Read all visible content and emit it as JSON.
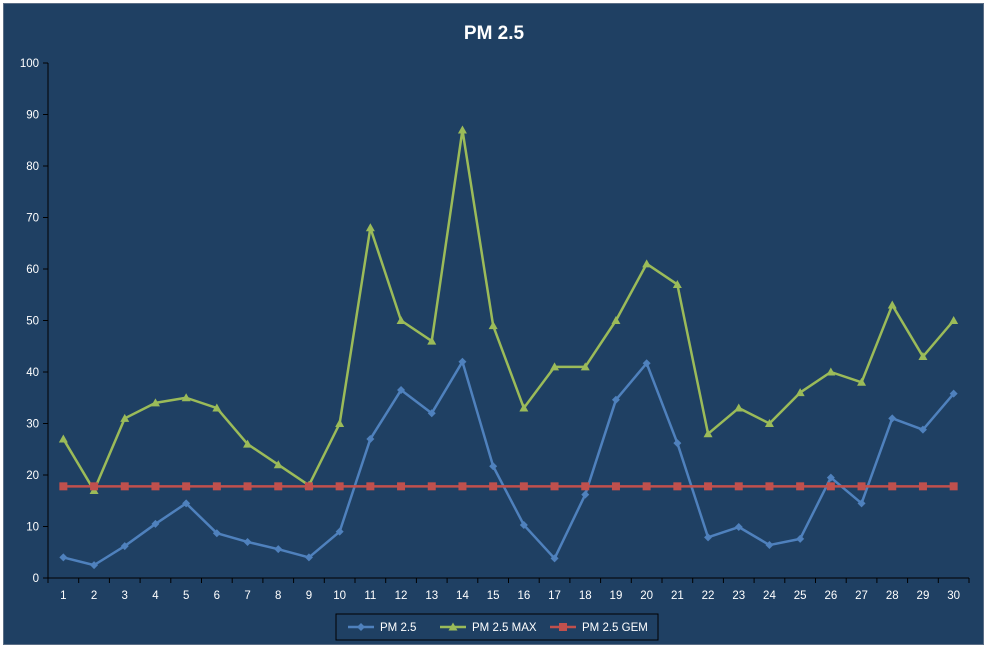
{
  "chart_data": {
    "type": "line",
    "title": "PM 2.5",
    "xlabel": "",
    "ylabel": "",
    "categories": [
      "1",
      "2",
      "3",
      "4",
      "5",
      "6",
      "7",
      "8",
      "9",
      "10",
      "11",
      "12",
      "13",
      "14",
      "15",
      "16",
      "17",
      "18",
      "19",
      "20",
      "21",
      "22",
      "23",
      "24",
      "25",
      "26",
      "27",
      "28",
      "29",
      "30"
    ],
    "ylim": [
      0,
      100
    ],
    "yticks": [
      0,
      10,
      20,
      30,
      40,
      50,
      60,
      70,
      80,
      90,
      100
    ],
    "grid": false,
    "legend_position": "bottom",
    "background": "#1f4063",
    "series": [
      {
        "name": "PM 2.5",
        "color": "#4f81bd",
        "marker": "diamond",
        "values": [
          4,
          2.5,
          6.2,
          10.5,
          14.5,
          8.7,
          7,
          5.6,
          4,
          9,
          27,
          36.5,
          32,
          42,
          21.7,
          10.3,
          3.8,
          16.2,
          34.6,
          41.7,
          26.2,
          7.9,
          9.9,
          6.4,
          7.6,
          19.5,
          14.5,
          31,
          28.8,
          35.8
        ]
      },
      {
        "name": "PM 2.5 MAX",
        "color": "#9bbb59",
        "marker": "triangle",
        "values": [
          27,
          17,
          31,
          34,
          35,
          33,
          26,
          22,
          18,
          30,
          68,
          50,
          46,
          87,
          49,
          33,
          41,
          41,
          50,
          61,
          57,
          28,
          33,
          30,
          36,
          40,
          38,
          53,
          43,
          50
        ]
      },
      {
        "name": "PM 2.5 GEM",
        "color": "#c0504d",
        "marker": "square",
        "values": [
          17.8,
          17.8,
          17.8,
          17.8,
          17.8,
          17.8,
          17.8,
          17.8,
          17.8,
          17.8,
          17.8,
          17.8,
          17.8,
          17.8,
          17.8,
          17.8,
          17.8,
          17.8,
          17.8,
          17.8,
          17.8,
          17.8,
          17.8,
          17.8,
          17.8,
          17.8,
          17.8,
          17.8,
          17.8,
          17.8
        ]
      }
    ]
  }
}
